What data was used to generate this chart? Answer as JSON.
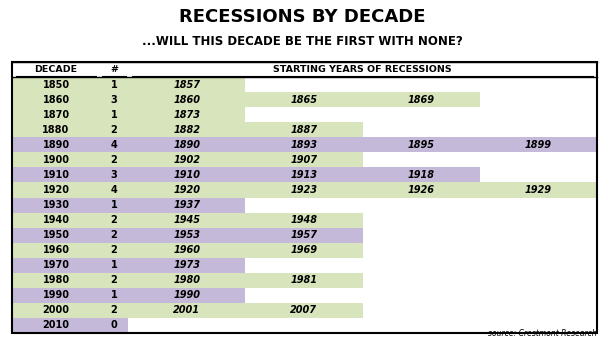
{
  "title1": "RECESSIONS BY DECADE",
  "title2": "...WILL THIS DECADE BE THE FIRST WITH NONE?",
  "col_headers": [
    "DECADE",
    "#",
    "STARTING YEARS OF RECESSIONS"
  ],
  "source": "source: Crestmont Research",
  "rows": [
    {
      "decade": "1850",
      "count": "1",
      "years": [
        "1857"
      ],
      "row_color": "#d8e4bc"
    },
    {
      "decade": "1860",
      "count": "3",
      "years": [
        "1860",
        "1865",
        "1869"
      ],
      "row_color": "#d8e4bc"
    },
    {
      "decade": "1870",
      "count": "1",
      "years": [
        "1873"
      ],
      "row_color": "#d8e4bc"
    },
    {
      "decade": "1880",
      "count": "2",
      "years": [
        "1882",
        "1887"
      ],
      "row_color": "#d8e4bc"
    },
    {
      "decade": "1890",
      "count": "4",
      "years": [
        "1890",
        "1893",
        "1895",
        "1899"
      ],
      "row_color": "#c4b9d9"
    },
    {
      "decade": "1900",
      "count": "2",
      "years": [
        "1902",
        "1907"
      ],
      "row_color": "#d8e4bc"
    },
    {
      "decade": "1910",
      "count": "3",
      "years": [
        "1910",
        "1913",
        "1918"
      ],
      "row_color": "#c4b9d9"
    },
    {
      "decade": "1920",
      "count": "4",
      "years": [
        "1920",
        "1923",
        "1926",
        "1929"
      ],
      "row_color": "#d8e4bc"
    },
    {
      "decade": "1930",
      "count": "1",
      "years": [
        "1937"
      ],
      "row_color": "#c4b9d9"
    },
    {
      "decade": "1940",
      "count": "2",
      "years": [
        "1945",
        "1948"
      ],
      "row_color": "#d8e4bc"
    },
    {
      "decade": "1950",
      "count": "2",
      "years": [
        "1953",
        "1957"
      ],
      "row_color": "#c4b9d9"
    },
    {
      "decade": "1960",
      "count": "2",
      "years": [
        "1960",
        "1969"
      ],
      "row_color": "#d8e4bc"
    },
    {
      "decade": "1970",
      "count": "1",
      "years": [
        "1973"
      ],
      "row_color": "#c4b9d9"
    },
    {
      "decade": "1980",
      "count": "2",
      "years": [
        "1980",
        "1981"
      ],
      "row_color": "#d8e4bc"
    },
    {
      "decade": "1990",
      "count": "1",
      "years": [
        "1990"
      ],
      "row_color": "#c4b9d9"
    },
    {
      "decade": "2000",
      "count": "2",
      "years": [
        "2001",
        "2007"
      ],
      "row_color": "#d8e4bc"
    },
    {
      "decade": "2010",
      "count": "0",
      "years": [],
      "row_color": "#c4b9d9"
    }
  ],
  "bg_color": "#ffffff",
  "text_color": "#000000",
  "title1_fontsize": 13.0,
  "title2_fontsize": 8.5,
  "header_fontsize": 6.8,
  "cell_fontsize": 7.0
}
